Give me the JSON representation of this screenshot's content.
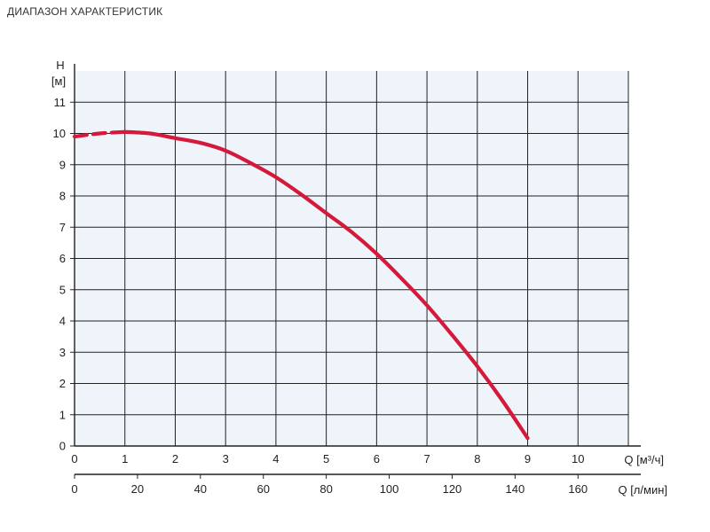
{
  "heading": "ДИАПАЗОН ХАРАКТЕРИСТИК",
  "colors": {
    "plot_bg": "#eef4fa",
    "grid": "#222222",
    "curve": "#d4193a"
  },
  "chart_data": {
    "type": "line",
    "title": "",
    "ylabel_top": "H",
    "ylabel_unit": "[м]",
    "xlabel_primary": "Q [м³/ч]",
    "xlabel_secondary": "Q [л/мин]",
    "ylim": [
      0,
      12
    ],
    "xlim": [
      0,
      11
    ],
    "x2lim": [
      0,
      176
    ],
    "y_ticks": [
      "0",
      "1",
      "2",
      "3",
      "4",
      "5",
      "6",
      "7",
      "8",
      "9",
      "10",
      "11"
    ],
    "x_ticks": [
      "0",
      "1",
      "2",
      "3",
      "4",
      "5",
      "6",
      "7",
      "8",
      "9",
      "10"
    ],
    "x2_ticks": [
      "0",
      "20",
      "40",
      "60",
      "80",
      "100",
      "120",
      "140",
      "160"
    ],
    "grid": true,
    "series": [
      {
        "style": "dashed",
        "x": [
          0,
          0.5,
          1.0
        ],
        "y": [
          9.9,
          10.0,
          10.05
        ]
      },
      {
        "style": "solid",
        "x": [
          1.0,
          1.5,
          2.0,
          2.5,
          3.0,
          3.5,
          4.0,
          4.5,
          5.0,
          5.5,
          6.0,
          6.5,
          7.0,
          7.5,
          8.0,
          8.5,
          9.0
        ],
        "y": [
          10.05,
          10.0,
          9.85,
          9.7,
          9.45,
          9.05,
          8.6,
          8.05,
          7.45,
          6.85,
          6.15,
          5.35,
          4.5,
          3.55,
          2.55,
          1.45,
          0.25
        ]
      }
    ]
  }
}
